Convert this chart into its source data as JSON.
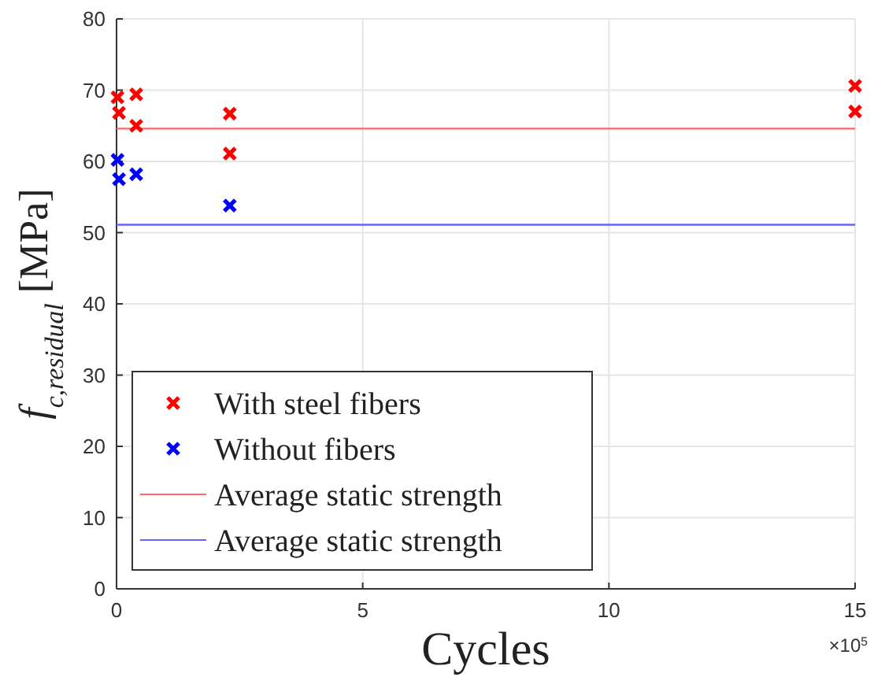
{
  "chart_data": {
    "type": "scatter",
    "xlabel": "Cycles",
    "ylabel": "f$_{c,residual}$ [MPa]",
    "xlim": [
      0,
      15
    ],
    "xticks": [
      0,
      5,
      10,
      15
    ],
    "ylim": [
      0,
      80
    ],
    "yticks": [
      0,
      10,
      20,
      30,
      40,
      50,
      60,
      70,
      80
    ],
    "grid": true,
    "marker": "cross",
    "legend": "bottom left",
    "series": [
      {
        "name": "With steel fibers",
        "color": "#ff0000",
        "x": [
          0.02,
          0.03,
          0.04,
          0.05,
          0.4,
          0.4,
          2.3,
          2.3,
          15,
          15
        ],
        "values": [
          69.0,
          null,
          null,
          66.8,
          69.4,
          65.0,
          66.7,
          61.1,
          70.6,
          67.0
        ]
      },
      {
        "name": "Without fibers",
        "color": "#0000ff",
        "x": [
          0.02,
          0.05,
          0.4,
          2.3
        ],
        "values": [
          60.2,
          57.5,
          58.2,
          53.8
        ]
      }
    ],
    "ref_lines": [
      {
        "axis": "y",
        "value": 64.6,
        "label": "Average static strength",
        "color": "#ff6666"
      },
      {
        "axis": "y",
        "value": 51.1,
        "label": "Average static strength",
        "color": "#6666ff"
      }
    ],
    "annotations": [
      "×10$^{5}$"
    ]
  }
}
